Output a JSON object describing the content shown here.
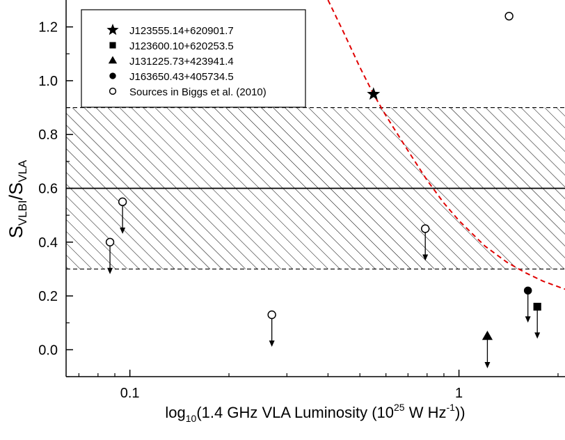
{
  "chart_data": {
    "type": "scatter",
    "xscale": "log",
    "xlim": [
      0.064,
      2.1
    ],
    "ylim": [
      -0.1,
      1.3
    ],
    "xlabel": {
      "pre": "log",
      "sub": "10",
      "mid": "(1.4 GHz VLA Luminosity (10",
      "sup": "25",
      "post": " W Hz",
      "sup2": "-1",
      "end": "))"
    },
    "ylabel": {
      "base": "S",
      "sub1": "VLBI",
      "slash": "/S",
      "sub2": "VLA"
    },
    "xticks": [
      {
        "value": 0.1,
        "label": "0.1"
      },
      {
        "value": 1,
        "label": "1"
      }
    ],
    "yticks": [
      {
        "value": 0.0,
        "label": "0.0"
      },
      {
        "value": 0.2,
        "label": "0.2"
      },
      {
        "value": 0.4,
        "label": "0.4"
      },
      {
        "value": 0.6,
        "label": "0.6"
      },
      {
        "value": 0.8,
        "label": "0.8"
      },
      {
        "value": 1.0,
        "label": "1.0"
      },
      {
        "value": 1.2,
        "label": "1.2"
      }
    ],
    "reference_band": {
      "lower": 0.3,
      "upper": 0.9,
      "center": 0.6
    },
    "series": [
      {
        "name": "J123555.14+620901.7",
        "marker": "star",
        "points": [
          {
            "x": 0.55,
            "y": 0.95,
            "upper_limit": false
          }
        ]
      },
      {
        "name": "J123600.10+620253.5",
        "marker": "square",
        "points": [
          {
            "x": 1.73,
            "y": 0.16,
            "upper_limit": true
          }
        ]
      },
      {
        "name": "J131225.73+423941.4",
        "marker": "triangle",
        "points": [
          {
            "x": 1.22,
            "y": 0.05,
            "upper_limit": true
          }
        ]
      },
      {
        "name": "J163650.43+405734.5",
        "marker": "circle",
        "points": [
          {
            "x": 1.62,
            "y": 0.22,
            "upper_limit": true
          }
        ]
      },
      {
        "name": "Sources in Biggs et al. (2010)",
        "marker": "open-circle",
        "points": [
          {
            "x": 0.087,
            "y": 0.4,
            "upper_limit": true
          },
          {
            "x": 0.095,
            "y": 0.55,
            "upper_limit": true
          },
          {
            "x": 0.27,
            "y": 0.13,
            "upper_limit": true
          },
          {
            "x": 0.79,
            "y": 0.45,
            "upper_limit": true
          },
          {
            "x": 1.42,
            "y": 1.24,
            "upper_limit": false
          }
        ]
      }
    ],
    "fit_curve": {
      "color": "#e00000",
      "style": "dashed",
      "points": [
        [
          0.4,
          1.3
        ],
        [
          0.45,
          1.17
        ],
        [
          0.5,
          1.05
        ],
        [
          0.55,
          0.95
        ],
        [
          0.6,
          0.87
        ],
        [
          0.7,
          0.74
        ],
        [
          0.8,
          0.63
        ],
        [
          0.9,
          0.545
        ],
        [
          1.0,
          0.48
        ],
        [
          1.2,
          0.385
        ],
        [
          1.4,
          0.325
        ],
        [
          1.6,
          0.285
        ],
        [
          1.8,
          0.255
        ],
        [
          2.1,
          0.225
        ]
      ]
    },
    "legend_position": "top-left",
    "grid": false
  }
}
